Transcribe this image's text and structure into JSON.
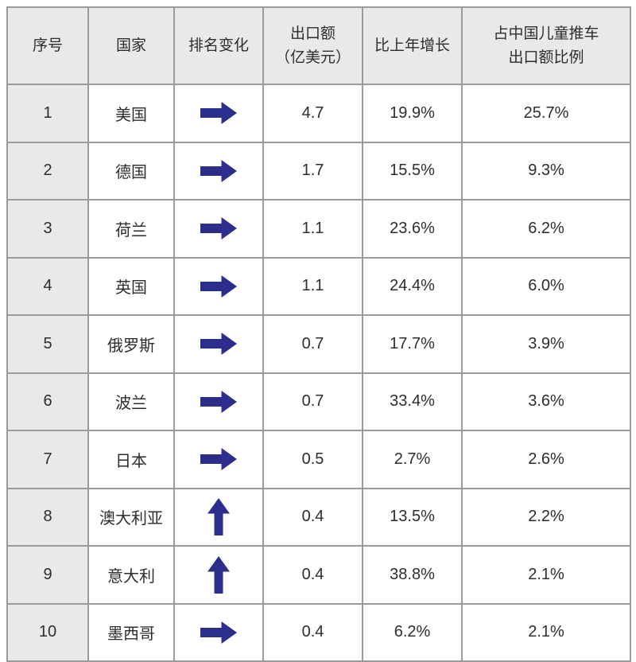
{
  "colors": {
    "arrow": "#2b2e8a",
    "header_bg": "#e9e9e9",
    "grid_border": "#9b9b9b",
    "text": "#2d2d2d"
  },
  "table": {
    "headers": {
      "rank": "序号",
      "country": "国家",
      "change": "排名变化",
      "export_line1": "出口额",
      "export_line2": "（亿美元）",
      "growth": "比上年增长",
      "share_line1": "占中国儿童推车",
      "share_line2": "出口额比例"
    },
    "rows": [
      {
        "rank": "1",
        "country": "美国",
        "change": "same",
        "export": "4.7",
        "growth": "19.9%",
        "share": "25.7%"
      },
      {
        "rank": "2",
        "country": "德国",
        "change": "same",
        "export": "1.7",
        "growth": "15.5%",
        "share": "9.3%"
      },
      {
        "rank": "3",
        "country": "荷兰",
        "change": "same",
        "export": "1.1",
        "growth": "23.6%",
        "share": "6.2%"
      },
      {
        "rank": "4",
        "country": "英国",
        "change": "same",
        "export": "1.1",
        "growth": "24.4%",
        "share": "6.0%"
      },
      {
        "rank": "5",
        "country": "俄罗斯",
        "change": "same",
        "export": "0.7",
        "growth": "17.7%",
        "share": "3.9%"
      },
      {
        "rank": "6",
        "country": "波兰",
        "change": "same",
        "export": "0.7",
        "growth": "33.4%",
        "share": "3.6%"
      },
      {
        "rank": "7",
        "country": "日本",
        "change": "same",
        "export": "0.5",
        "growth": "2.7%",
        "share": "2.6%"
      },
      {
        "rank": "8",
        "country": "澳大利亚",
        "change": "up",
        "export": "0.4",
        "growth": "13.5%",
        "share": "2.2%"
      },
      {
        "rank": "9",
        "country": "意大利",
        "change": "up",
        "export": "0.4",
        "growth": "38.8%",
        "share": "2.1%"
      },
      {
        "rank": "10",
        "country": "墨西哥",
        "change": "same",
        "export": "0.4",
        "growth": "6.2%",
        "share": "2.1%"
      }
    ]
  },
  "chart_data": {
    "type": "table",
    "title": "",
    "columns": [
      "序号",
      "国家",
      "排名变化",
      "出口额（亿美元）",
      "比上年增长",
      "占中国儿童推车出口额比例"
    ],
    "rows": [
      [
        "1",
        "美国",
        "→",
        "4.7",
        "19.9%",
        "25.7%"
      ],
      [
        "2",
        "德国",
        "→",
        "1.7",
        "15.5%",
        "9.3%"
      ],
      [
        "3",
        "荷兰",
        "→",
        "1.1",
        "23.6%",
        "6.2%"
      ],
      [
        "4",
        "英国",
        "→",
        "1.1",
        "24.4%",
        "6.0%"
      ],
      [
        "5",
        "俄罗斯",
        "→",
        "0.7",
        "17.7%",
        "3.9%"
      ],
      [
        "6",
        "波兰",
        "→",
        "0.7",
        "33.4%",
        "3.6%"
      ],
      [
        "7",
        "日本",
        "→",
        "0.5",
        "2.7%",
        "2.6%"
      ],
      [
        "8",
        "澳大利亚",
        "↑",
        "0.4",
        "13.5%",
        "2.2%"
      ],
      [
        "9",
        "意大利",
        "↑",
        "0.4",
        "38.8%",
        "2.1%"
      ],
      [
        "10",
        "墨西哥",
        "→",
        "0.4",
        "6.2%",
        "2.1%"
      ]
    ]
  }
}
